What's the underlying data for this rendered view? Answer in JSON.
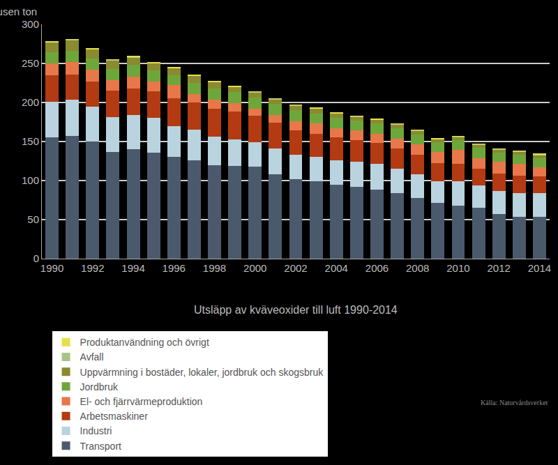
{
  "chart_data": {
    "type": "bar",
    "stacked": true,
    "grid": true,
    "title": "Utsläpp av kväveoxider till luft 1990-2014",
    "y_label": "Tusen ton",
    "source": "Källa: Naturvårdsverket",
    "ylim": [
      0,
      300
    ],
    "yticks": [
      0,
      50,
      100,
      150,
      200,
      250,
      300
    ],
    "categories": [
      "1990",
      null,
      "1992",
      null,
      "1994",
      null,
      "1996",
      null,
      "1998",
      null,
      "2000",
      null,
      "2002",
      null,
      "2004",
      null,
      "2006",
      null,
      "2008",
      null,
      "2010",
      null,
      "2012",
      null,
      "2014"
    ],
    "series": [
      {
        "name": "Transport",
        "color": "#4a5a6c",
        "values": [
          155,
          157,
          150,
          137,
          140,
          136,
          130,
          126,
          120,
          119,
          118,
          108,
          102,
          99,
          95,
          92,
          88,
          84,
          78,
          71,
          68,
          65,
          57,
          54,
          54
        ]
      },
      {
        "name": "Industri",
        "color": "#b9d3df",
        "values": [
          46,
          47,
          45,
          44,
          44,
          44,
          40,
          39,
          36,
          34,
          31,
          33,
          31,
          31,
          31,
          32,
          33,
          31,
          30,
          28,
          31,
          29,
          30,
          30,
          30
        ]
      },
      {
        "name": "Arbetsmaskiner",
        "color": "#b33a12",
        "values": [
          34,
          32,
          32,
          34,
          34,
          34,
          35,
          35,
          36,
          35,
          34,
          33,
          31,
          30,
          29,
          28,
          27,
          26,
          25,
          23,
          22,
          21,
          22,
          22,
          21
        ]
      },
      {
        "name": "El- och fjärrvärmeproduktion",
        "color": "#e8774a",
        "values": [
          15,
          16,
          15,
          14,
          15,
          13,
          17,
          11,
          12,
          11,
          9,
          10,
          12,
          13,
          12,
          12,
          12,
          13,
          13,
          15,
          18,
          14,
          15,
          15,
          12
        ]
      },
      {
        "name": "Jordbruk",
        "color": "#6fa63a",
        "values": [
          14,
          14,
          14,
          14,
          15,
          14,
          13,
          14,
          14,
          14,
          14,
          14,
          14,
          13,
          13,
          13,
          13,
          13,
          13,
          12,
          13,
          13,
          12,
          12,
          12
        ]
      },
      {
        "name": "Uppvärmning i bostäder, lokaler, jordbruk och skogsbruk",
        "color": "#8a8a2e",
        "values": [
          13,
          14,
          12,
          11,
          10,
          9,
          9,
          9,
          8,
          7,
          7,
          6,
          6,
          6,
          6,
          5,
          5,
          5,
          5,
          4,
          4,
          4,
          4,
          4,
          4
        ]
      },
      {
        "name": "Avfall",
        "color": "#a9c48a",
        "values": [
          0.5,
          0.5,
          0.5,
          0.5,
          0.5,
          0.5,
          0.5,
          0.5,
          0.5,
          0.5,
          0.5,
          0.5,
          0.5,
          0.5,
          0.5,
          0.5,
          0.5,
          0.5,
          0.5,
          0.5,
          0.5,
          0.5,
          0.5,
          0.5,
          0.5
        ]
      },
      {
        "name": "Produktanvändning och övrigt",
        "color": "#e6e04a",
        "values": [
          0.5,
          0.5,
          0.5,
          0.5,
          0.5,
          0.5,
          0.5,
          0.5,
          0.5,
          0.5,
          0.5,
          0.5,
          0.5,
          0.5,
          0.5,
          0.5,
          0.5,
          0.5,
          0.5,
          0.5,
          0.5,
          0.5,
          0.5,
          0.5,
          0.5
        ]
      }
    ]
  }
}
